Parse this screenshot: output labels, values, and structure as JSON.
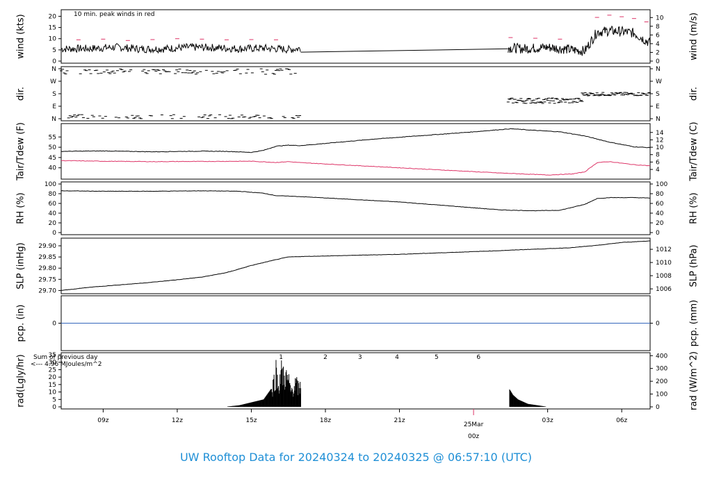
{
  "footer": {
    "title": "UW Rooftop Data for 20240324  to  20240325 @ 06:57:10  (UTC)"
  },
  "colors": {
    "series": "#000000",
    "dew": "#dd3366",
    "peak": "#dd3366",
    "pcp": "#3366bb",
    "rad_note": "#9922cc",
    "date": "#dd3366",
    "footer": "#1f8fd6"
  },
  "x_axis": {
    "ticks": [
      {
        "h": 9,
        "label": "09z"
      },
      {
        "h": 12,
        "label": "12z"
      },
      {
        "h": 15,
        "label": "15z"
      },
      {
        "h": 18,
        "label": "18z"
      },
      {
        "h": 21,
        "label": "21z"
      },
      {
        "h": 27,
        "label": "03z"
      },
      {
        "h": 30,
        "label": "06z"
      }
    ],
    "date_tick": {
      "h": 24,
      "date": "25Mar",
      "time": "00z"
    },
    "range_hours": [
      7.3,
      31.15
    ]
  },
  "chart_data": [
    {
      "type": "line",
      "id": "wind",
      "ylabel_left": "wind (kts)",
      "ylabel_right": "wind (m/s)",
      "ylim": [
        0,
        22
      ],
      "left_ticks": [
        0,
        5,
        10,
        15,
        20
      ],
      "right_ticks": [
        0,
        2,
        4,
        6,
        8,
        10
      ],
      "right_scale": "m/s",
      "annotation": "10 min. peak winds in red",
      "gap_hours": [
        17.0,
        25.4
      ],
      "series": [
        {
          "name": "wind",
          "segments": [
            {
              "x": [
                7.3,
                8.5,
                9.5,
                10.5,
                11.5,
                12.5,
                13.5,
                14.5,
                15.5,
                16.5,
                17.0
              ],
              "y": [
                5.5,
                5.6,
                6.2,
                5.4,
                5.5,
                6.2,
                6.0,
                5.5,
                5.8,
                5.2,
                5.6
              ]
            },
            {
              "x": [
                17.0,
                25.4
              ],
              "y": [
                4.0,
                5.5
              ]
            },
            {
              "x": [
                25.4,
                26.0,
                27.0,
                28.0,
                28.5,
                29.0,
                29.5,
                30.0,
                30.5,
                31.15
              ],
              "y": [
                6.0,
                5.5,
                6.2,
                5.0,
                4.5,
                13.0,
                13.5,
                13.2,
                12.5,
                8.0
              ]
            }
          ]
        },
        {
          "name": "peak",
          "points_note": "red peak markers",
          "x": [
            8,
            9,
            10,
            11,
            12,
            13,
            14,
            15,
            16,
            25.5,
            26.5,
            27.5,
            29,
            29.5,
            30,
            30.5,
            31
          ],
          "y": [
            9.5,
            9.8,
            9.2,
            9.6,
            10.0,
            9.8,
            9.5,
            9.6,
            9.5,
            10.5,
            10.2,
            9.8,
            19.5,
            20.5,
            19.8,
            19.0,
            17.5
          ]
        }
      ]
    },
    {
      "type": "scatter",
      "id": "dir",
      "ylabel_left": "dir.",
      "ylabel_right": "dir.",
      "categories": [
        "N",
        "W",
        "S",
        "E",
        "N"
      ],
      "ylim": [
        0,
        360
      ],
      "series": [
        {
          "name": "dir_morning",
          "x_range": [
            7.3,
            17.0
          ],
          "y_bands": [
            [
              320,
              360
            ],
            [
              0,
              30
            ]
          ]
        },
        {
          "name": "dir_evening",
          "x_range": [
            25.4,
            28.4
          ],
          "y_band": [
            110,
            150
          ]
        },
        {
          "name": "dir_late",
          "x_range": [
            28.4,
            31.15
          ],
          "y_band": [
            165,
            190
          ]
        }
      ]
    },
    {
      "type": "line",
      "id": "temp",
      "ylabel_left": "Tair/Tdew (F)",
      "ylabel_right": "Tair/Tdew (C)",
      "ylim": [
        35.5,
        60.5
      ],
      "left_ticks": [
        40,
        45,
        50,
        55
      ],
      "right_ticks": [
        4,
        6,
        8,
        10,
        12,
        14
      ],
      "series": [
        {
          "name": "Tair",
          "x": [
            7.3,
            9,
            11,
            13,
            14,
            15,
            15.5,
            16.0,
            16.5,
            17.0,
            20,
            24,
            25.0,
            25.5,
            26.5,
            27.5,
            28.5,
            29.5,
            30.5,
            31.15
          ],
          "y": [
            48.0,
            48.2,
            47.8,
            48.1,
            48.0,
            47.5,
            48.5,
            50.5,
            51.0,
            50.8,
            54.0,
            57.5,
            58.5,
            59.0,
            58.2,
            57.5,
            55.5,
            52.5,
            50.2,
            49.8
          ]
        },
        {
          "name": "Tdew",
          "x": [
            7.3,
            9,
            11,
            13,
            15,
            16,
            16.5,
            17.0,
            21,
            25,
            26,
            27,
            28,
            28.5,
            29.0,
            29.5,
            30.5,
            31.15
          ],
          "y": [
            43.5,
            43.2,
            43.0,
            43.1,
            43.2,
            42.6,
            43.0,
            42.5,
            40.0,
            37.5,
            37.0,
            36.5,
            37.0,
            38.0,
            42.5,
            43.0,
            41.5,
            41.0
          ]
        }
      ]
    },
    {
      "type": "line",
      "id": "rh",
      "ylabel_left": "RH (%)",
      "ylabel_right": "RH (%)",
      "ylim": [
        0,
        100
      ],
      "left_ticks": [
        0,
        20,
        40,
        60,
        80,
        100
      ],
      "right_ticks": [
        0,
        20,
        40,
        60,
        80,
        100
      ],
      "series": [
        {
          "name": "RH",
          "x": [
            7.3,
            9,
            11,
            13,
            14.5,
            15.5,
            16.0,
            16.5,
            17.0,
            21,
            25.0,
            25.5,
            26.5,
            27.5,
            28.0,
            28.5,
            29.0,
            29.5,
            30.5,
            31.15
          ],
          "y": [
            86,
            85,
            85,
            86,
            85,
            81,
            76,
            75,
            74,
            63,
            47,
            46,
            45,
            46,
            52,
            58,
            70,
            72,
            72,
            71
          ]
        }
      ]
    },
    {
      "type": "line",
      "id": "slp",
      "ylabel_left": "SLP (inHg)",
      "ylabel_right": "SLP (hPa)",
      "ylim": [
        29.695,
        29.925
      ],
      "left_ticks": [
        29.7,
        29.75,
        29.8,
        29.85,
        29.9
      ],
      "right_ticks": [
        1006,
        1008,
        1010,
        1012
      ],
      "series": [
        {
          "name": "SLP",
          "x": [
            7.3,
            8.5,
            10,
            11,
            12,
            13,
            14,
            15,
            16,
            16.5,
            17,
            21,
            25,
            26,
            27,
            28,
            29,
            30,
            31.15
          ],
          "y": [
            29.7,
            29.715,
            29.728,
            29.737,
            29.748,
            29.76,
            29.78,
            29.812,
            29.838,
            29.85,
            29.852,
            29.862,
            29.878,
            29.883,
            29.887,
            29.892,
            29.902,
            29.915,
            29.922
          ]
        }
      ]
    },
    {
      "type": "line",
      "id": "pcp",
      "ylabel_left": "pcp. (in)",
      "ylabel_right": "pcp. (mm)",
      "left_ticks": [
        0
      ],
      "right_ticks": [
        0
      ],
      "series": [
        {
          "name": "pcp",
          "x": [
            7.3,
            31.15
          ],
          "y": [
            0,
            0
          ]
        }
      ]
    },
    {
      "type": "area",
      "id": "rad",
      "ylabel_left": "rad(Lgly/hr)",
      "ylabel_right": "rad (W/m^2)",
      "ylim": [
        0,
        35
      ],
      "left_ticks": [
        0,
        5,
        10,
        15,
        20,
        25,
        30,
        35
      ],
      "right_ticks": [
        0,
        100,
        200,
        300,
        400
      ],
      "annotation_lines": [
        "Sum of previous day",
        "<--- 4.96 MJoules/m^2"
      ],
      "hour_markers": [
        "1",
        "2",
        "3",
        "4",
        "5",
        "6"
      ],
      "series": [
        {
          "name": "rad",
          "x": [
            13.9,
            14.5,
            15.0,
            15.5,
            15.8,
            16.0,
            16.1,
            16.2,
            16.4,
            16.5,
            16.6,
            16.8,
            16.9,
            17.0,
            17.0,
            25.45,
            25.6,
            25.8,
            26.2,
            26.6,
            27.0
          ],
          "y": [
            0,
            1,
            3,
            5,
            12,
            34,
            20,
            33,
            28,
            25,
            15,
            22,
            18,
            19,
            0,
            12,
            8,
            5,
            2,
            1,
            0
          ]
        }
      ]
    }
  ]
}
